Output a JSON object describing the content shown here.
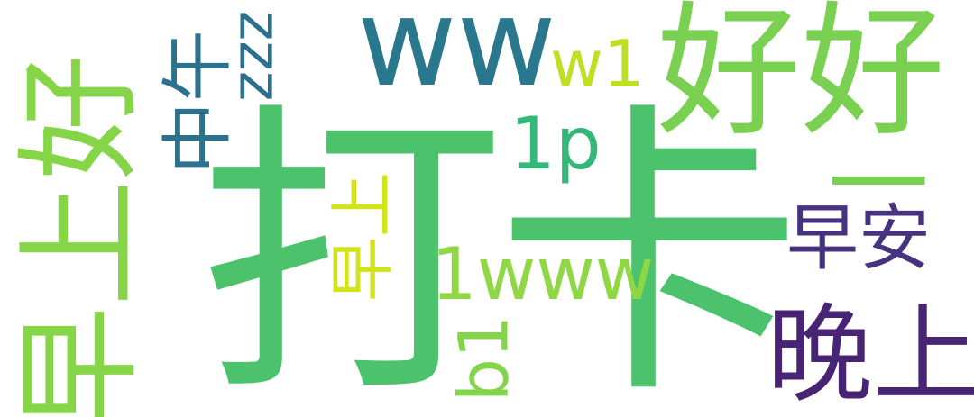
{
  "palette": {
    "dark_purple": "#482475",
    "purple": "#46327e",
    "teal": "#2a788e",
    "teal_mid": "#2c728e",
    "green": "#5ec962",
    "green_bright": "#44bf70",
    "green_mid": "#3aba76",
    "lime": "#7ad151",
    "lime_light": "#a0da39",
    "yellow_green": "#c8e020",
    "yellow": "#d2e21b"
  },
  "words": [
    {
      "id": "daka",
      "text": "打卡",
      "color": "#4cc26c"
    },
    {
      "id": "haohao",
      "text": "好好",
      "color": "#7ad151"
    },
    {
      "id": "zaoshanghao",
      "text": "早上好",
      "color": "#86d549"
    },
    {
      "id": "ww",
      "text": "ww",
      "color": "#2a788e"
    },
    {
      "id": "wanshang",
      "text": "晚上",
      "color": "#482475"
    },
    {
      "id": "zaoan",
      "text": "早安",
      "color": "#46327e"
    },
    {
      "id": "1www",
      "text": "1www",
      "color": "#8fd744"
    },
    {
      "id": "zhongwu",
      "text": "中午",
      "color": "#2c728e"
    },
    {
      "id": "zaoshang_small",
      "text": "早上",
      "color": "#d2e21b"
    },
    {
      "id": "w1",
      "text": "w1",
      "color": "#bddf26"
    },
    {
      "id": "1p",
      "text": "1p",
      "color": "#35b779"
    },
    {
      "id": "zzz",
      "text": "zzz",
      "color": "#2d708e"
    },
    {
      "id": "yi",
      "text": "一",
      "color": "#7ad151"
    },
    {
      "id": "b1",
      "text": "b1",
      "color": "#84d44b"
    }
  ]
}
